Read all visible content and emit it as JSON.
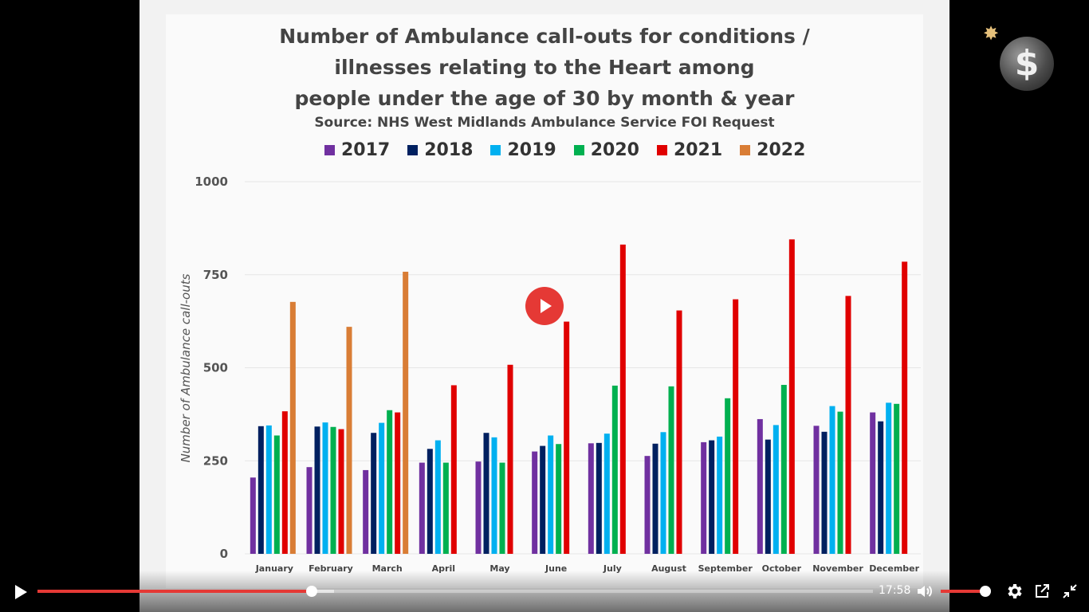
{
  "player": {
    "current_time": "17:58",
    "progress": 0.328,
    "buffered": 0.355,
    "volume": 0.9,
    "accent_color": "#e53935"
  },
  "controls": {
    "icons": [
      "play-icon",
      "volume-icon",
      "settings-gear-icon",
      "popout-icon",
      "exit-fullscreen-icon",
      "center-play-icon"
    ]
  },
  "logo": {
    "symbol": "$",
    "spark": "✸"
  },
  "chart_data": {
    "type": "bar",
    "title_lines": [
      "Number of Ambulance call-outs for conditions /",
      "illnesses relating to the Heart among",
      "people under the age of 30 by month & year"
    ],
    "subtitle": "Source: NHS West Midlands Ambulance Service FOI Request",
    "ylabel": "Number of Ambulance call-outs",
    "xlabel": "",
    "ylim": [
      0,
      1000
    ],
    "yticks": [
      0,
      250,
      500,
      750,
      1000
    ],
    "grid": true,
    "legend_position": "top",
    "categories": [
      "January",
      "February",
      "March",
      "April",
      "May",
      "June",
      "July",
      "August",
      "September",
      "October",
      "November",
      "December"
    ],
    "series": [
      {
        "name": "2017",
        "color": "#7030a0",
        "values": [
          205,
          233,
          225,
          245,
          248,
          275,
          297,
          263,
          300,
          362,
          344,
          380
        ]
      },
      {
        "name": "2018",
        "color": "#002060",
        "values": [
          343,
          342,
          325,
          282,
          325,
          290,
          298,
          296,
          305,
          307,
          328,
          356
        ]
      },
      {
        "name": "2019",
        "color": "#00b0f0",
        "values": [
          345,
          353,
          352,
          305,
          313,
          318,
          323,
          327,
          315,
          346,
          397,
          406
        ]
      },
      {
        "name": "2020",
        "color": "#00b050",
        "values": [
          318,
          341,
          386,
          245,
          245,
          295,
          452,
          450,
          418,
          454,
          382,
          403
        ]
      },
      {
        "name": "2021",
        "color": "#e00000",
        "values": [
          383,
          335,
          380,
          453,
          508,
          624,
          831,
          654,
          684,
          845,
          693,
          785
        ]
      },
      {
        "name": "2022",
        "color": "#d97d35",
        "values": [
          677,
          610,
          758,
          null,
          null,
          null,
          null,
          null,
          null,
          null,
          null,
          null
        ]
      }
    ]
  }
}
